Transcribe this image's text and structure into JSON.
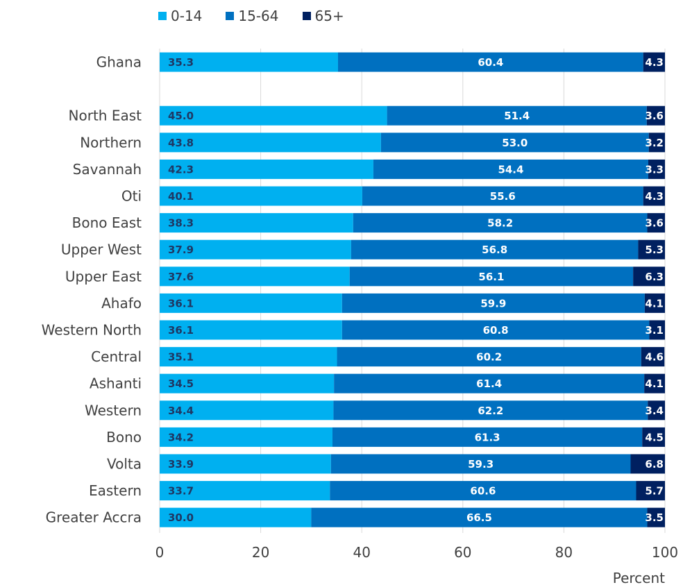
{
  "chart_data": {
    "type": "bar",
    "orientation": "horizontal",
    "stacked": true,
    "categories": [
      "Ghana",
      "",
      "North East",
      "Northern",
      "Savannah",
      "Oti",
      "Bono East",
      "Upper West",
      "Upper East",
      "Ahafo",
      "Western North",
      "Central",
      "Ashanti",
      "Western",
      "Bono",
      "Volta",
      "Eastern",
      "Greater Accra"
    ],
    "series": [
      {
        "name": "0-14",
        "color": "#00B0F0",
        "label_color": "#1F3864",
        "values": [
          35.3,
          null,
          45.0,
          43.8,
          42.3,
          40.1,
          38.3,
          37.9,
          37.6,
          36.1,
          36.1,
          35.1,
          34.5,
          34.4,
          34.2,
          33.9,
          33.7,
          30.0
        ],
        "labels": [
          "35.3",
          "",
          "45.0",
          "43.8",
          "42.3",
          "40.1",
          "38.3",
          "37.9",
          "37.6",
          "36.1",
          "36.1",
          "35.1",
          "34.5",
          "34.4",
          "34.2",
          "33.9",
          "33.7",
          "30.0"
        ]
      },
      {
        "name": "15-64",
        "color": "#0070C0",
        "label_color": "#FFFFFF",
        "values": [
          60.4,
          null,
          51.4,
          53.0,
          54.4,
          55.6,
          58.2,
          56.8,
          56.1,
          59.9,
          60.8,
          60.2,
          61.4,
          62.2,
          61.3,
          59.3,
          60.6,
          66.5
        ],
        "labels": [
          "60.4",
          "",
          "51.4",
          "53.0",
          "54.4",
          "55.6",
          "58.2",
          "56.8",
          "56.1",
          "59.9",
          "60.8",
          "60.2",
          "61.4",
          "62.2",
          "61.3",
          "59.3",
          "60.6",
          "66.5"
        ]
      },
      {
        "name": "65+",
        "color": "#002060",
        "label_color": "#FFFFFF",
        "values": [
          4.3,
          null,
          3.6,
          3.2,
          3.3,
          4.3,
          3.6,
          5.3,
          6.3,
          4.1,
          3.1,
          4.6,
          4.1,
          3.4,
          4.5,
          6.8,
          5.7,
          3.5
        ],
        "labels": [
          "4.3",
          "",
          "3.6",
          "3.2",
          "3.3",
          "4.3",
          "3.6",
          "5.3",
          "6.3",
          "4.1",
          "3.1",
          "4.6",
          "4.1",
          "3.4",
          "4.5",
          "6.8",
          "5.7",
          "3.5"
        ]
      }
    ],
    "xlabel": "Percent",
    "xlim": [
      0,
      100
    ],
    "xticks": [
      "0",
      "20",
      "40",
      "60",
      "80",
      "100"
    ],
    "grid": "vertical",
    "legend_position": "top-left"
  }
}
